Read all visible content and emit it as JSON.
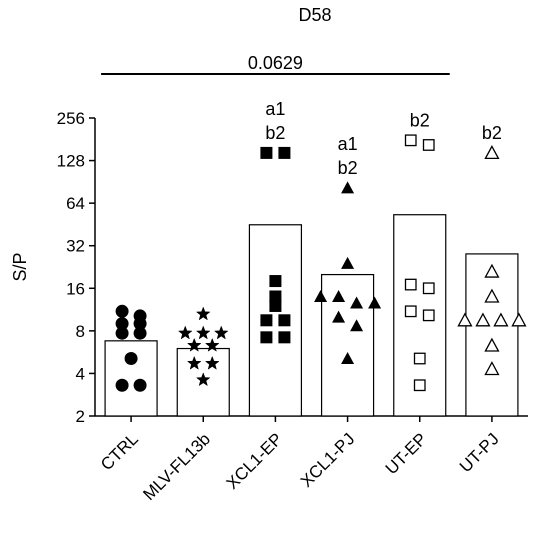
{
  "chart_data": {
    "type": "bar",
    "title": "D58",
    "ylabel": "S/P",
    "xlabel": "",
    "yscale": "log2",
    "ylim": [
      2,
      256
    ],
    "yticks": [
      2,
      4,
      8,
      16,
      32,
      64,
      128,
      256
    ],
    "categories": [
      "CTRL",
      "MLV-FL13b",
      "XCL1-EP",
      "XCL1-PJ",
      "UT-EP",
      "UT-PJ"
    ],
    "bar_values": [
      6.8,
      6.0,
      45,
      20,
      53,
      28
    ],
    "points": [
      [
        11,
        10.2,
        9,
        9,
        7.7,
        7.7,
        5.1,
        3.3,
        3.3
      ],
      [
        10.5,
        7.7,
        7.7,
        7.7,
        6.3,
        6.3,
        4.7,
        4.7,
        3.6
      ],
      [
        145,
        145,
        18,
        14,
        12,
        9.5,
        9.5,
        7.2,
        7.2
      ],
      [
        82,
        24,
        14,
        14,
        12.6,
        12.6,
        10,
        8.7,
        5.1
      ],
      [
        178,
        165,
        17,
        16,
        11,
        10.3,
        5.1,
        3.3
      ],
      [
        145,
        21,
        14,
        9.5,
        9.5,
        9.5,
        9.5,
        6.3,
        4.3
      ]
    ],
    "markers": [
      "circle-filled",
      "star-filled",
      "square-filled",
      "triangle-filled",
      "square-open",
      "triangle-open"
    ],
    "group_annotations": [
      [],
      [],
      [
        "a1",
        "b2"
      ],
      [
        "a1",
        "b2"
      ],
      [
        "b2"
      ],
      [
        "b2"
      ]
    ],
    "comparison": {
      "from": "CTRL",
      "to": "UT-EP",
      "label": "0.0629"
    }
  }
}
